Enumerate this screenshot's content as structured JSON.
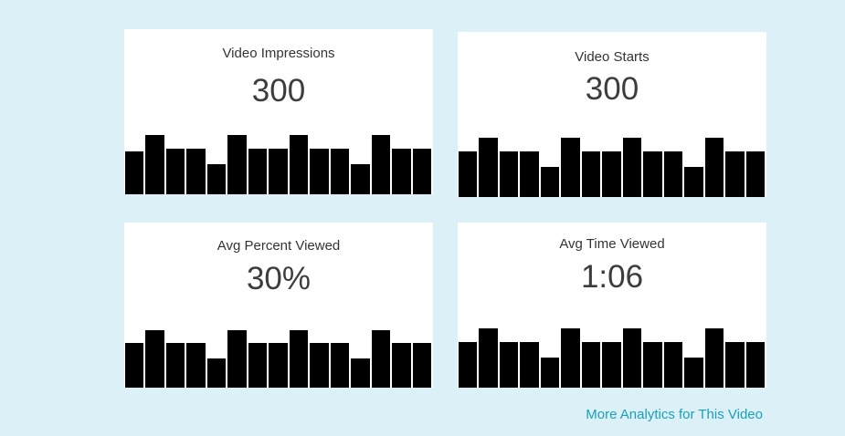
{
  "cards": [
    {
      "title": "Video Impressions",
      "value": "300",
      "bars": [
        0.72,
        1.0,
        0.78,
        0.78,
        0.52,
        1.0,
        0.78,
        0.78,
        1.0,
        0.78,
        0.78,
        0.52,
        1.0,
        0.78,
        0.78
      ]
    },
    {
      "title": "Video Starts",
      "value": "300",
      "bars": [
        0.78,
        1.0,
        0.78,
        0.78,
        0.52,
        1.0,
        0.78,
        0.78,
        1.0,
        0.78,
        0.78,
        0.52,
        1.0,
        0.78,
        0.78
      ]
    },
    {
      "title": "Avg Percent Viewed",
      "value": "30%",
      "bars": [
        0.78,
        1.0,
        0.78,
        0.78,
        0.52,
        1.0,
        0.78,
        0.78,
        1.0,
        0.78,
        0.78,
        0.52,
        1.0,
        0.78,
        0.78
      ]
    },
    {
      "title": "Avg Time Viewed",
      "value": "1:06",
      "bars": [
        0.78,
        1.0,
        0.78,
        0.78,
        0.52,
        1.0,
        0.78,
        0.78,
        1.0,
        0.78,
        0.78,
        0.52,
        1.0,
        0.78,
        0.78
      ]
    }
  ],
  "footer": {
    "link_label": "More Analytics for This Video"
  },
  "colors": {
    "background": "#dcf0f8",
    "card": "#ffffff",
    "bar": "#000000",
    "link": "#1aa0b8"
  }
}
